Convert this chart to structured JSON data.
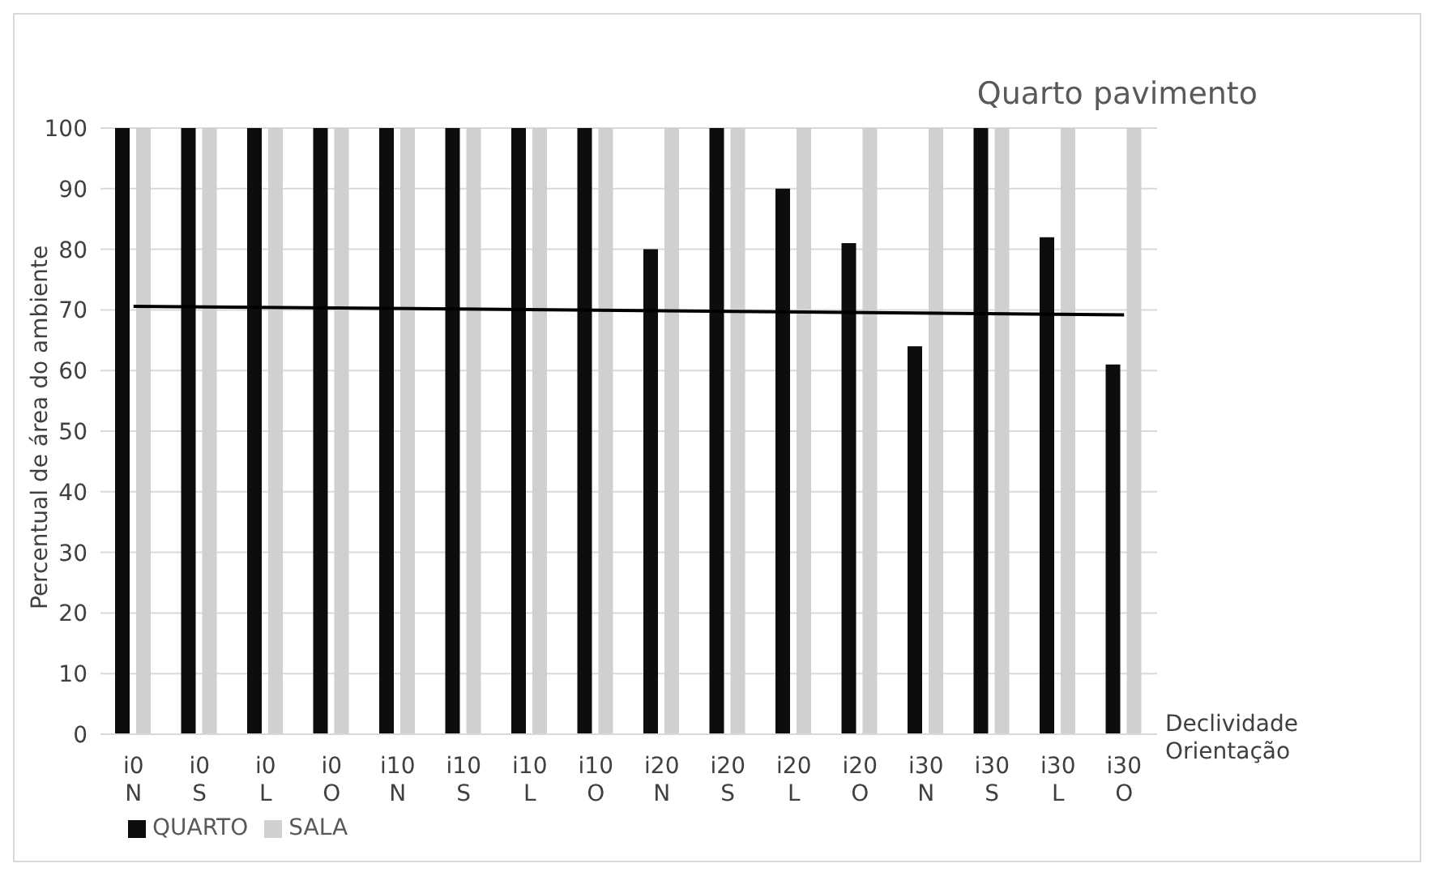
{
  "chart_data": {
    "type": "bar",
    "title": "Quarto pavimento",
    "xlabel": "Declividade\nOrientação",
    "ylabel": "Percentual de área do ambiente",
    "categories": [
      "i0\nN",
      "i0\nS",
      "i0\nL",
      "i0\nO",
      "i10\nN",
      "i10\nS",
      "i10\nL",
      "i10\nO",
      "i20\nN",
      "i20\nS",
      "i20\nL",
      "i20\nO",
      "i30\nN",
      "i30\nS",
      "i30\nL",
      "i30\nO"
    ],
    "series": [
      {
        "name": "QUARTO",
        "color": "#0d0d0d",
        "values": [
          100,
          100,
          100,
          100,
          100,
          100,
          100,
          100,
          80,
          100,
          90,
          81,
          64,
          100,
          82,
          61
        ]
      },
      {
        "name": "SALA",
        "color": "#d0d0d0",
        "values": [
          100,
          100,
          100,
          100,
          100,
          100,
          100,
          100,
          100,
          100,
          100,
          100,
          100,
          100,
          100,
          100
        ]
      },
      {
        "type": "line",
        "color": "#000000",
        "x": [
          "i0\nN",
          "i30\nO"
        ],
        "values": [
          70.6,
          69.2
        ]
      }
    ],
    "ylim": [
      0,
      100
    ],
    "yticks": [
      0,
      10,
      20,
      30,
      40,
      50,
      60,
      70,
      80,
      90,
      100
    ],
    "grid": "y",
    "legend": "bottom left"
  }
}
